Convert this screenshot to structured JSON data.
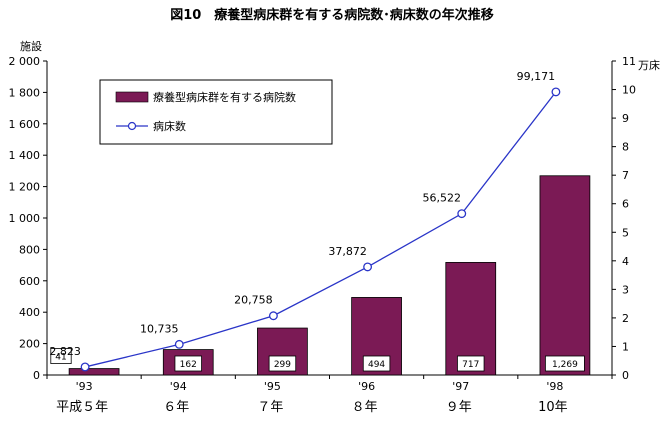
{
  "chart_data": {
    "type": "bar+line",
    "title": "図10　療養型病床群を有する病院数･病床数の年次推移",
    "y_left_label": "施設",
    "y_right_label": "万床",
    "y_left_lim": [
      0,
      2000
    ],
    "y_left_ticks": [
      "0",
      "200",
      "400",
      "600",
      "800",
      "1 000",
      "1 200",
      "1 400",
      "1 600",
      "1 800",
      "2 000"
    ],
    "y_right_lim": [
      0,
      11
    ],
    "y_right_ticks": [
      "0",
      "1",
      "2",
      "3",
      "4",
      "5",
      "6",
      "7",
      "8",
      "9",
      "10",
      "11"
    ],
    "categories_western": [
      "'93",
      "'94",
      "'95",
      "'96",
      "'97",
      "'98"
    ],
    "categories_japanese": [
      "平成５年",
      "６年",
      "７年",
      "８年",
      "９年",
      "10年"
    ],
    "series": [
      {
        "name": "療養型病床群を有する病院数",
        "kind": "bar",
        "axis": "left",
        "color": "#7b1a55",
        "values": [
          41,
          162,
          299,
          494,
          717,
          1269
        ],
        "labels": [
          "41",
          "162",
          "299",
          "494",
          "717",
          "1,269"
        ]
      },
      {
        "name": "病床数",
        "kind": "line",
        "axis": "right",
        "color": "#2a35c8",
        "values": [
          2823,
          10735,
          20758,
          37872,
          56522,
          99171
        ],
        "labels": [
          "2,823",
          "10,735",
          "20,758",
          "37,872",
          "56,522",
          "99,171"
        ]
      }
    ],
    "grid": false,
    "legend_position": "top-left"
  }
}
